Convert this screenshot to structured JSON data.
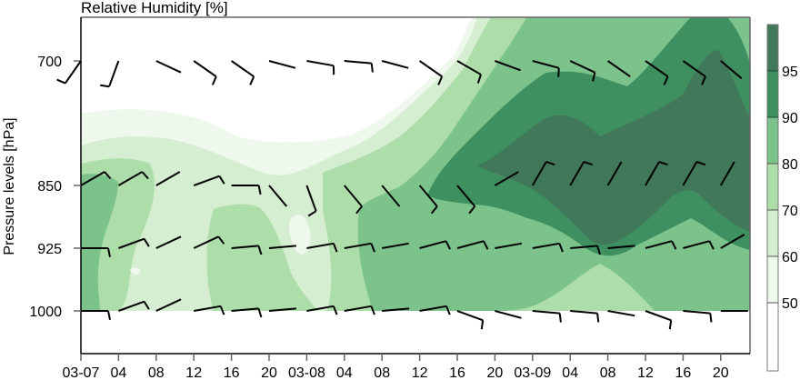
{
  "chart_data": {
    "type": "heatmap",
    "subtype": "filled-contour-with-wind-barbs",
    "title": "Relative Humidity [%]",
    "xlabel": "",
    "ylabel": "Pressure levels [hPa]",
    "x_tick_labels": [
      "03-07",
      "04",
      "08",
      "12",
      "16",
      "20",
      "03-08",
      "04",
      "08",
      "12",
      "16",
      "20",
      "03-09",
      "04",
      "08",
      "12",
      "16",
      "20"
    ],
    "x_tick_hours": [
      0,
      4,
      8,
      12,
      16,
      20,
      24,
      28,
      32,
      36,
      40,
      44,
      48,
      52,
      56,
      60,
      64,
      68
    ],
    "x_range_hours": [
      0,
      71
    ],
    "y_tick_labels": [
      "700",
      "850",
      "925",
      "1000"
    ],
    "y_levels": [
      700,
      850,
      925,
      1000
    ],
    "colorbar": {
      "levels": [
        50,
        60,
        70,
        80,
        90,
        95
      ],
      "tick_labels": [
        "50",
        "60",
        "70",
        "80",
        "90",
        "95"
      ],
      "bands": [
        {
          "range": "<50",
          "color": "#ffffff"
        },
        {
          "range": "50-60",
          "color": "#eef8ec"
        },
        {
          "range": "60-70",
          "color": "#d5edd0"
        },
        {
          "range": "70-80",
          "color": "#addeaa"
        },
        {
          "range": "80-90",
          "color": "#7cc38b"
        },
        {
          "range": "90-95",
          "color": "#3e9060"
        },
        {
          "range": ">95",
          "color": "#41785a"
        }
      ]
    },
    "rh_summary": {
      "700": "dry (<50%) on 03-07 through 03-08 12; increasing to 70-95% from 03-08 16 onward, >95% near 03-09 18",
      "850": "60-80% on 03-07, 50-70% on 03-08 morning, >90-95% from 03-08 14 through 03-09 20",
      "925": "60-80% on 03-07 and 03-08, 80-95% on 03-09",
      "1000": "60-80% most of period"
    },
    "wind_barbs_note": "Wind barbs plotted every 2 hours at each pressure level; mostly light winds (5-10 kt), westerly to northwesterly aloft",
    "grid": false,
    "legend_position": "right colorbar"
  },
  "colors": {
    "band_ge95": "#41785a",
    "band_90_95": "#3e9060",
    "band_80_90": "#7cc38b",
    "band_70_80": "#addeaa",
    "band_60_70": "#d5edd0",
    "band_50_60": "#eef8ec",
    "band_lt50": "#ffffff",
    "axis": "#000000",
    "frame": "#666666"
  }
}
